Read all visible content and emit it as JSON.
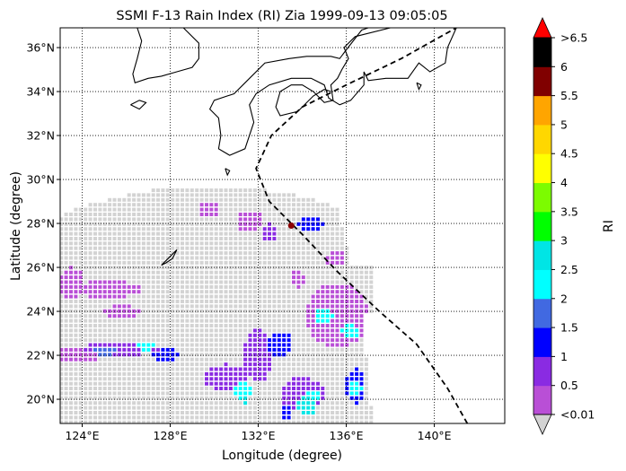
{
  "title": "SSMI F-13 Rain Index (RI) Zia 1999-09-13 09:05:05",
  "xlabel": "Longitude (degree)",
  "ylabel": "Latitude (degree)",
  "chart_data": {
    "type": "heatmap",
    "map_projection": "equirectangular",
    "lon_range": [
      123,
      143.2
    ],
    "lat_range": [
      18.9,
      36.9
    ],
    "xticks": [
      {
        "value": 124,
        "label": "124°E"
      },
      {
        "value": 128,
        "label": "128°E"
      },
      {
        "value": 132,
        "label": "132°E"
      },
      {
        "value": 136,
        "label": "136°E"
      },
      {
        "value": 140,
        "label": "140°E"
      }
    ],
    "yticks": [
      {
        "value": 20,
        "label": "20°N"
      },
      {
        "value": 22,
        "label": "22°N"
      },
      {
        "value": 24,
        "label": "24°N"
      },
      {
        "value": 26,
        "label": "26°N"
      },
      {
        "value": 28,
        "label": "28°N"
      },
      {
        "value": 30,
        "label": "30°N"
      },
      {
        "value": 32,
        "label": "32°N"
      },
      {
        "value": 34,
        "label": "34°N"
      },
      {
        "value": 36,
        "label": "36°N"
      }
    ],
    "grid": true,
    "grid_style": "dotted",
    "colorbar": {
      "label": "RI",
      "bounds": [
        0.01,
        0.5,
        1,
        1.5,
        2,
        2.5,
        3,
        3.5,
        4,
        4.5,
        5,
        5.5,
        6,
        6.5
      ],
      "colors": [
        "#b94fd6",
        "#8a2be2",
        "#0000ff",
        "#4169e1",
        "#00ffff",
        "#00e5e5",
        "#00ff00",
        "#7cfc00",
        "#ffff00",
        "#ffd700",
        "#ffa500",
        "#800000",
        "#000000"
      ],
      "under_color": "#d3d3d3",
      "over_color": "#ff0000",
      "tick_labels": [
        "<0.01",
        "0.5",
        "1",
        "1.5",
        "2",
        "2.5",
        "3",
        "3.5",
        "4",
        "4.5",
        "5",
        "5.5",
        "6",
        ">6.5"
      ]
    },
    "swath": {
      "center_lon": 129.8,
      "center_lat": 11.5,
      "radius_deg": 18.2,
      "lon_min": 123,
      "lon_max": 137.2
    },
    "track": {
      "style": "dashed",
      "color": "#000000",
      "points": [
        [
          141.5,
          18.9
        ],
        [
          140.6,
          20.5
        ],
        [
          139.2,
          22.5
        ],
        [
          137.5,
          24.0
        ],
        [
          135.6,
          25.8
        ],
        [
          134.0,
          27.5
        ],
        [
          132.5,
          29.0
        ],
        [
          131.9,
          30.5
        ],
        [
          132.6,
          32.0
        ],
        [
          134.0,
          33.3
        ],
        [
          136.0,
          34.3
        ],
        [
          138.5,
          35.5
        ],
        [
          141.0,
          36.9
        ]
      ],
      "position": [
        133.5,
        27.9
      ]
    },
    "rain_areas": [
      {
        "lon": 123.6,
        "lat": 22.0,
        "rlon": 1.2,
        "rlat": 0.35,
        "ri": 0.4
      },
      {
        "lon": 125.8,
        "lat": 22.3,
        "rlon": 1.8,
        "rlat": 0.3,
        "ri": 0.9
      },
      {
        "lon": 125.0,
        "lat": 22.2,
        "rlon": 0.6,
        "rlat": 0.2,
        "ri": 1.8
      },
      {
        "lon": 126.9,
        "lat": 22.4,
        "rlon": 0.4,
        "rlat": 0.2,
        "ri": 2.2
      },
      {
        "lon": 127.8,
        "lat": 22.0,
        "rlon": 0.6,
        "rlat": 0.3,
        "ri": 1.2
      },
      {
        "lon": 123.5,
        "lat": 25.3,
        "rlon": 0.6,
        "rlat": 0.7,
        "ri": 0.4
      },
      {
        "lon": 125.2,
        "lat": 25.0,
        "rlon": 1.6,
        "rlat": 0.4,
        "ri": 0.4
      },
      {
        "lon": 125.8,
        "lat": 24.0,
        "rlon": 0.8,
        "rlat": 0.3,
        "ri": 0.4
      },
      {
        "lon": 129.8,
        "lat": 28.6,
        "rlon": 0.5,
        "rlat": 0.4,
        "ri": 0.4
      },
      {
        "lon": 131.6,
        "lat": 28.1,
        "rlon": 0.6,
        "rlat": 0.5,
        "ri": 0.4
      },
      {
        "lon": 132.5,
        "lat": 27.6,
        "rlon": 0.4,
        "rlat": 0.4,
        "ri": 0.9
      },
      {
        "lon": 134.4,
        "lat": 28.0,
        "rlon": 0.6,
        "rlat": 0.4,
        "ri": 1.1
      },
      {
        "lon": 135.5,
        "lat": 26.4,
        "rlon": 0.4,
        "rlat": 0.4,
        "ri": 0.4
      },
      {
        "lon": 133.8,
        "lat": 25.5,
        "rlon": 0.3,
        "rlat": 0.4,
        "ri": 0.4
      },
      {
        "lon": 135.6,
        "lat": 23.8,
        "rlon": 1.4,
        "rlat": 1.5,
        "ri": 0.4
      },
      {
        "lon": 135.0,
        "lat": 23.8,
        "rlon": 0.5,
        "rlat": 0.3,
        "ri": 2.2
      },
      {
        "lon": 136.2,
        "lat": 23.1,
        "rlon": 0.4,
        "rlat": 0.3,
        "ri": 2.2
      },
      {
        "lon": 132.0,
        "lat": 22.0,
        "rlon": 0.7,
        "rlat": 1.2,
        "ri": 0.6
      },
      {
        "lon": 133.0,
        "lat": 22.5,
        "rlon": 0.6,
        "rlat": 0.6,
        "ri": 1.2
      },
      {
        "lon": 130.5,
        "lat": 21.0,
        "rlon": 1.0,
        "rlat": 0.6,
        "ri": 0.7
      },
      {
        "lon": 131.3,
        "lat": 20.4,
        "rlon": 0.5,
        "rlat": 0.4,
        "ri": 2.2
      },
      {
        "lon": 131.4,
        "lat": 20.0,
        "rlon": 0.2,
        "rlat": 0.2,
        "ri": 2.7
      },
      {
        "lon": 134.0,
        "lat": 20.2,
        "rlon": 1.0,
        "rlat": 0.8,
        "ri": 0.9
      },
      {
        "lon": 134.2,
        "lat": 19.7,
        "rlon": 0.4,
        "rlat": 0.5,
        "ri": 2.8
      },
      {
        "lon": 134.5,
        "lat": 20.1,
        "rlon": 0.4,
        "rlat": 0.3,
        "ri": 2.2
      },
      {
        "lon": 136.4,
        "lat": 20.6,
        "rlon": 0.5,
        "rlat": 0.8,
        "ri": 1.0
      },
      {
        "lon": 136.4,
        "lat": 20.5,
        "rlon": 0.3,
        "rlat": 0.3,
        "ri": 2.2
      },
      {
        "lon": 133.3,
        "lat": 19.4,
        "rlon": 0.3,
        "rlat": 0.3,
        "ri": 1.2
      }
    ]
  },
  "coastlines": {
    "korea": [
      [
        138,
        36.9
      ],
      [
        136.4,
        36.5
      ],
      [
        135.9,
        36.0
      ],
      [
        136.1,
        35.5
      ],
      [
        135.8,
        35.0
      ],
      [
        135.6,
        34.6
      ],
      [
        135.3,
        34.3
      ],
      [
        135.4,
        33.6
      ],
      [
        135.0,
        33.5
      ],
      [
        134.5,
        34.0
      ],
      [
        134.0,
        34.3
      ],
      [
        133.5,
        34.3
      ],
      [
        133.0,
        34.0
      ],
      [
        132.8,
        33.3
      ],
      [
        133.0,
        32.9
      ],
      [
        133.8,
        33.1
      ],
      [
        134.5,
        33.8
      ],
      [
        135.0,
        34.1
      ],
      [
        135.3,
        34.0
      ]
    ],
    "japan_main": [
      [
        143.2,
        36.9
      ],
      [
        141.0,
        36.9
      ],
      [
        140.6,
        36.0
      ],
      [
        140.5,
        35.3
      ],
      [
        139.8,
        34.9
      ],
      [
        139.3,
        35.3
      ],
      [
        138.8,
        34.6
      ],
      [
        137.8,
        34.6
      ],
      [
        137.0,
        34.5
      ],
      [
        136.8,
        34.9
      ],
      [
        136.8,
        34.3
      ],
      [
        136.2,
        33.6
      ],
      [
        135.7,
        33.4
      ],
      [
        135.2,
        33.7
      ],
      [
        135.0,
        34.3
      ],
      [
        134.4,
        34.6
      ],
      [
        133.5,
        34.6
      ],
      [
        132.5,
        34.3
      ],
      [
        131.9,
        33.9
      ],
      [
        131.6,
        33.4
      ],
      [
        131.8,
        32.6
      ],
      [
        131.4,
        31.4
      ],
      [
        130.7,
        31.1
      ],
      [
        130.2,
        31.4
      ],
      [
        130.3,
        32.0
      ],
      [
        130.2,
        32.8
      ],
      [
        129.8,
        33.2
      ],
      [
        130.0,
        33.6
      ],
      [
        130.9,
        33.9
      ],
      [
        131.4,
        34.4
      ],
      [
        132.3,
        35.3
      ],
      [
        133.4,
        35.5
      ],
      [
        134.2,
        35.6
      ],
      [
        135.3,
        35.6
      ],
      [
        135.7,
        35.5
      ],
      [
        136.0,
        35.9
      ],
      [
        136.7,
        36.8
      ],
      [
        137.0,
        36.9
      ]
    ],
    "korea_peninsula": [
      [
        128.6,
        36.9
      ],
      [
        129.3,
        36.2
      ],
      [
        129.3,
        35.5
      ],
      [
        129.0,
        35.1
      ],
      [
        128.3,
        34.9
      ],
      [
        127.6,
        34.7
      ],
      [
        127.0,
        34.6
      ],
      [
        126.4,
        34.4
      ],
      [
        126.3,
        34.8
      ],
      [
        126.5,
        35.5
      ],
      [
        126.7,
        36.3
      ],
      [
        126.5,
        36.9
      ]
    ],
    "jeju": [
      [
        126.2,
        33.4
      ],
      [
        126.6,
        33.6
      ],
      [
        126.9,
        33.5
      ],
      [
        126.6,
        33.2
      ],
      [
        126.2,
        33.4
      ]
    ],
    "kyushu_isl": [
      [
        130.5,
        30.5
      ],
      [
        130.7,
        30.4
      ],
      [
        130.6,
        30.2
      ],
      [
        130.5,
        30.5
      ]
    ],
    "okinawa": [
      [
        127.6,
        26.1
      ],
      [
        128.0,
        26.5
      ],
      [
        128.3,
        26.8
      ],
      [
        128.1,
        26.4
      ],
      [
        127.8,
        26.2
      ],
      [
        127.6,
        26.1
      ]
    ],
    "izu": [
      [
        139.2,
        34.4
      ],
      [
        139.4,
        34.3
      ],
      [
        139.3,
        34.1
      ],
      [
        139.2,
        34.4
      ]
    ]
  }
}
